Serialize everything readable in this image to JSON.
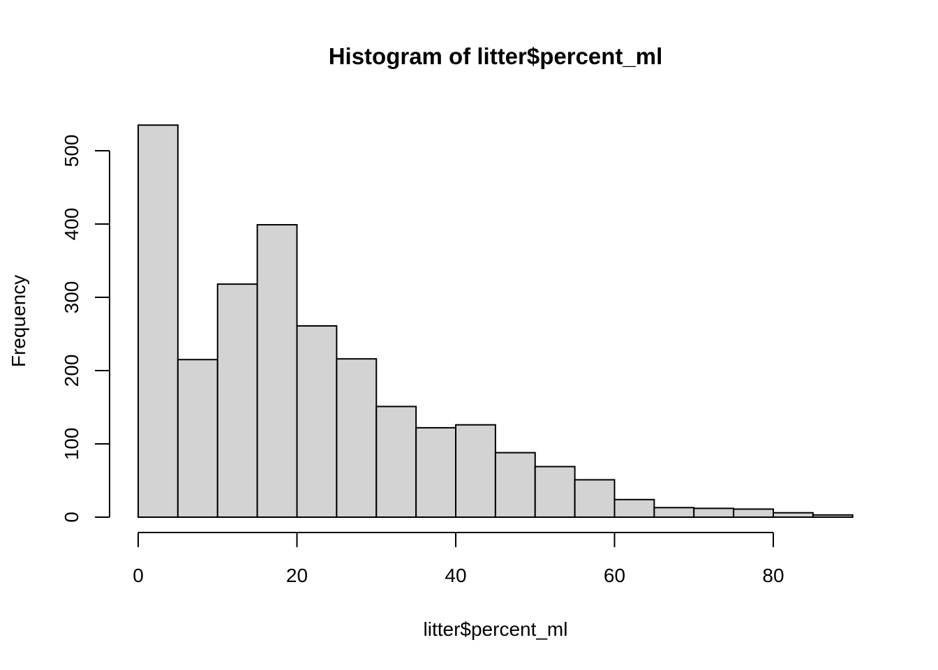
{
  "chart_data": {
    "type": "bar",
    "title": "Histogram of litter$percent_ml",
    "xlabel": "litter$percent_ml",
    "ylabel": "Frequency",
    "bins": [
      {
        "x0": 0,
        "x1": 5,
        "count": 535
      },
      {
        "x0": 5,
        "x1": 10,
        "count": 215
      },
      {
        "x0": 10,
        "x1": 15,
        "count": 318
      },
      {
        "x0": 15,
        "x1": 20,
        "count": 399
      },
      {
        "x0": 20,
        "x1": 25,
        "count": 261
      },
      {
        "x0": 25,
        "x1": 30,
        "count": 216
      },
      {
        "x0": 30,
        "x1": 35,
        "count": 151
      },
      {
        "x0": 35,
        "x1": 40,
        "count": 122
      },
      {
        "x0": 40,
        "x1": 45,
        "count": 126
      },
      {
        "x0": 45,
        "x1": 50,
        "count": 88
      },
      {
        "x0": 50,
        "x1": 55,
        "count": 69
      },
      {
        "x0": 55,
        "x1": 60,
        "count": 51
      },
      {
        "x0": 60,
        "x1": 65,
        "count": 24
      },
      {
        "x0": 65,
        "x1": 70,
        "count": 13
      },
      {
        "x0": 70,
        "x1": 75,
        "count": 12
      },
      {
        "x0": 75,
        "x1": 80,
        "count": 11
      },
      {
        "x0": 80,
        "x1": 85,
        "count": 6
      },
      {
        "x0": 85,
        "x1": 90,
        "count": 3
      }
    ],
    "xlim": [
      0,
      90
    ],
    "ylim": [
      0,
      535
    ],
    "x_ticks": [
      0,
      20,
      40,
      60,
      80
    ],
    "y_ticks": [
      0,
      100,
      200,
      300,
      400,
      500
    ],
    "grid": false,
    "bar_color": "#d3d3d3",
    "edge_color": "#000000"
  }
}
